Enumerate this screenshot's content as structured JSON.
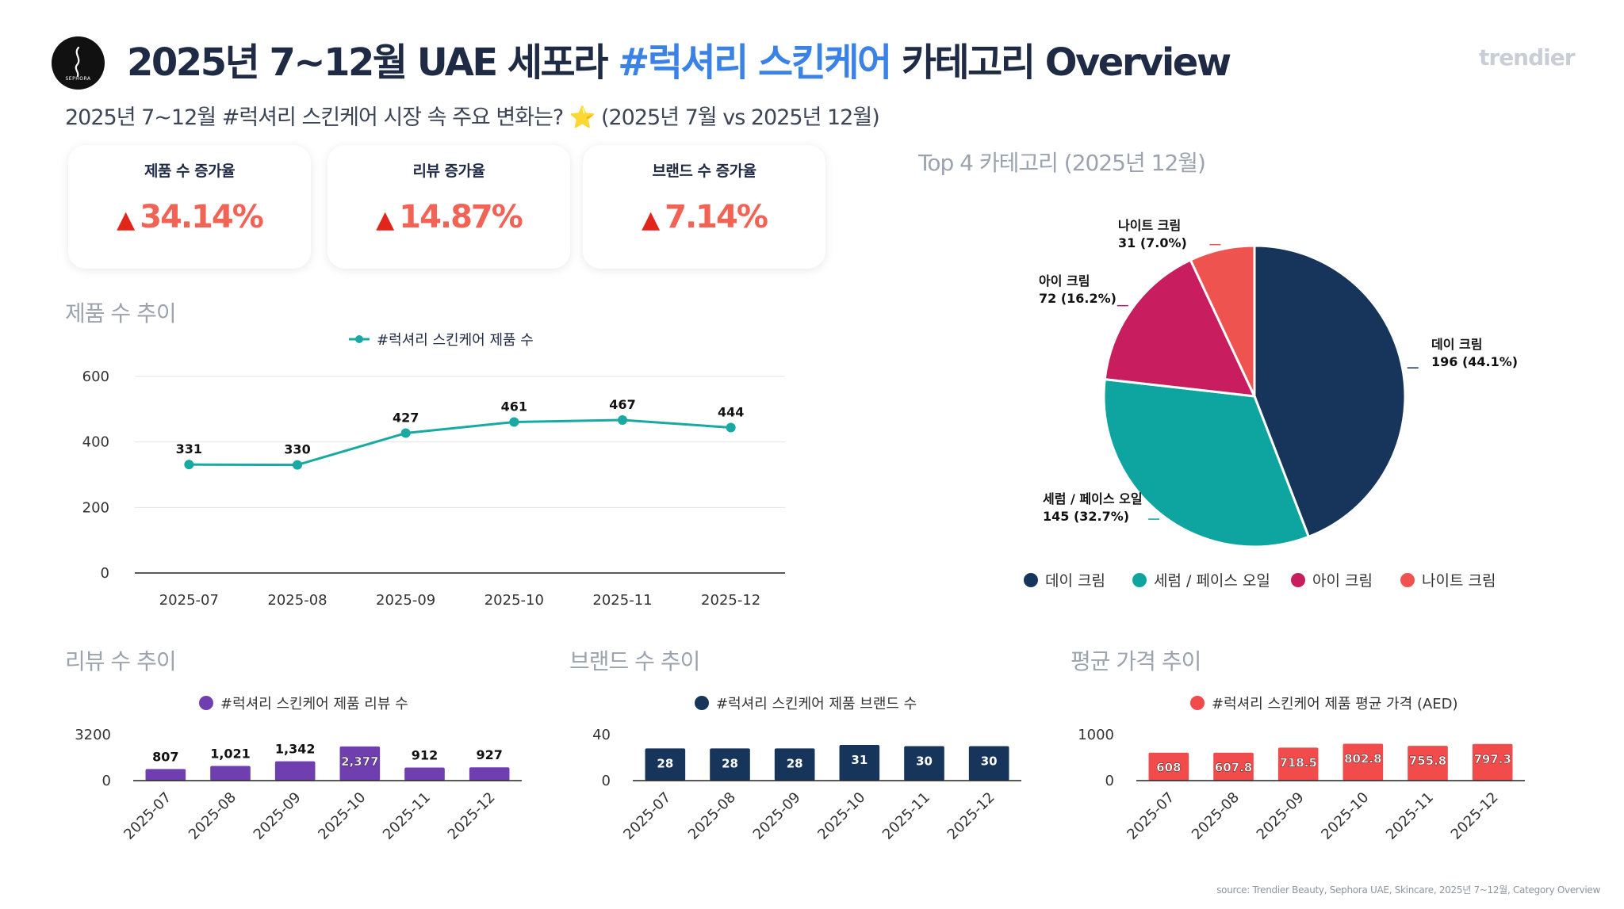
{
  "header": {
    "logo_text": "SEPHORA",
    "title_part1": "2025년 7~12월 UAE 세포라 ",
    "title_highlight": "#럭셔리 스킨케어",
    "title_part2": " 카테고리 Overview",
    "brand": "trendier",
    "subtitle": "2025년 7~12월 #럭셔리 스킨케어 시장 속 주요 변화는? ⭐ (2025년 7월 vs 2025년 12월)"
  },
  "kpis": [
    {
      "label": "제품 수 증가율",
      "value": "34.14%"
    },
    {
      "label": "리뷰 증가율",
      "value": "14.87%"
    },
    {
      "label": "브랜드 수 증가율",
      "value": "7.14%"
    }
  ],
  "sections": {
    "products": "제품 수 추이",
    "top4": "Top 4 카테고리 (2025년 12월)",
    "reviews": "리뷰 수 추이",
    "brands": "브랜드 수 추이",
    "price": "평균 가격 추이"
  },
  "colors": {
    "teal": "#17a9a2",
    "purple": "#6f3fb0",
    "navy": "#17355b",
    "red": "#f24b4b",
    "title_blue": "#3b82e6",
    "kpi_red": "#f16354"
  },
  "chart_data": [
    {
      "id": "products",
      "type": "line",
      "title": "제품 수 추이",
      "categories": [
        "2025-07",
        "2025-08",
        "2025-09",
        "2025-10",
        "2025-11",
        "2025-12"
      ],
      "series": [
        {
          "name": "#럭셔리 스킨케어 제품 수",
          "values": [
            331,
            330,
            427,
            461,
            467,
            444
          ]
        }
      ],
      "ylim": [
        0,
        600
      ],
      "yticks": [
        0,
        200,
        400,
        600
      ],
      "grid": true,
      "legend": "top"
    },
    {
      "id": "top4",
      "type": "pie",
      "title": "Top 4 카테고리 (2025년 12월)",
      "slices": [
        {
          "label": "데이 크림",
          "value": 196,
          "pct": "44.1%",
          "color": "#17355b"
        },
        {
          "label": "세럼 / 페이스 오일",
          "value": 145,
          "pct": "32.7%",
          "color": "#0ea5a0"
        },
        {
          "label": "아이 크림",
          "value": 72,
          "pct": "16.2%",
          "color": "#c81e5f"
        },
        {
          "label": "나이트 크림",
          "value": 31,
          "pct": "7.0%",
          "color": "#ef5350"
        }
      ],
      "legend": "bottom"
    },
    {
      "id": "reviews",
      "type": "bar",
      "title": "리뷰 수 추이",
      "categories": [
        "2025-07",
        "2025-08",
        "2025-09",
        "2025-10",
        "2025-11",
        "2025-12"
      ],
      "series": [
        {
          "name": "#럭셔리 스킨케어 제품 리뷰 수",
          "values": [
            807,
            1021,
            1342,
            2377,
            912,
            927
          ]
        }
      ],
      "value_labels": [
        "807",
        "1,021",
        "1,342",
        "2,377",
        "912",
        "927"
      ],
      "ylim": [
        0,
        3200
      ],
      "yticks": [
        0,
        3200
      ],
      "legend": "top"
    },
    {
      "id": "brands",
      "type": "bar",
      "title": "브랜드 수 추이",
      "categories": [
        "2025-07",
        "2025-08",
        "2025-09",
        "2025-10",
        "2025-11",
        "2025-12"
      ],
      "series": [
        {
          "name": "#럭셔리 스킨케어 제품 브랜드 수",
          "values": [
            28,
            28,
            28,
            31,
            30,
            30
          ]
        }
      ],
      "value_labels": [
        "28",
        "28",
        "28",
        "31",
        "30",
        "30"
      ],
      "ylim": [
        0,
        40
      ],
      "yticks": [
        0,
        40
      ],
      "legend": "top"
    },
    {
      "id": "price",
      "type": "bar",
      "title": "평균 가격 추이",
      "categories": [
        "2025-07",
        "2025-08",
        "2025-09",
        "2025-10",
        "2025-11",
        "2025-12"
      ],
      "series": [
        {
          "name": "#럭셔리 스킨케어 제품 평균 가격 (AED)",
          "values": [
            608,
            607.8,
            718.5,
            802.8,
            755.8,
            797.3
          ]
        }
      ],
      "value_labels": [
        "608",
        "607.8",
        "718.5",
        "802.8",
        "755.8",
        "797.3"
      ],
      "ylim": [
        0,
        1000
      ],
      "yticks": [
        0,
        1000
      ],
      "legend": "top"
    }
  ],
  "source": "source: Trendier Beauty, Sephora UAE, Skincare, 2025년 7~12월, Category Overview"
}
